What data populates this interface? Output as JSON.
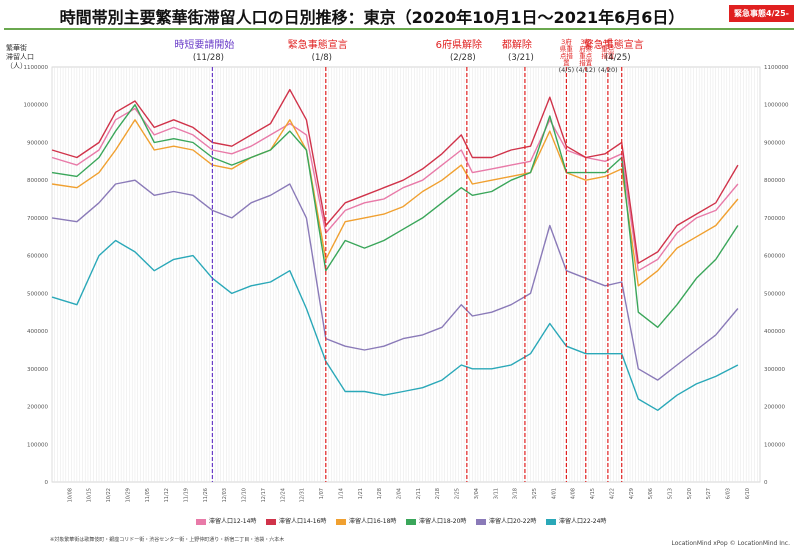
{
  "header": {
    "title": "時間帯別主要繁華街滞留人口の日別推移：東京（2020年10月1日〜2021年6月6日）",
    "badge": "緊急事態4/25-"
  },
  "footer": {
    "note": "※対象繁華街は歌舞伎町・銀座コリドー街・渋谷センター街・上野仲町通り・新宿二丁目・池袋・六本木",
    "credit": "LocationMind xPop © LocationMind Inc."
  },
  "chart_data": {
    "type": "line",
    "title": "時間帯別主要繁華街滞留人口の日別推移：東京（2020年10月1日〜2021年6月6日）",
    "ylabel": "繁華街滞留人口（人）",
    "ylim": [
      0,
      1100000
    ],
    "yticks": [
      0,
      100000,
      200000,
      300000,
      400000,
      500000,
      600000,
      700000,
      800000,
      900000,
      1000000,
      1100000
    ],
    "xlim": [
      "2020-10-01",
      "2021-06-14"
    ],
    "x_tick_labels": [
      "10/08",
      "10/15",
      "10/22",
      "10/29",
      "11/05",
      "11/12",
      "11/19",
      "11/26",
      "12/03",
      "12/10",
      "12/17",
      "12/24",
      "12/31",
      "1/07",
      "1/14",
      "1/21",
      "1/28",
      "2/04",
      "2/11",
      "2/18",
      "2/25",
      "3/04",
      "3/11",
      "3/18",
      "3/25",
      "4/01",
      "4/08",
      "4/15",
      "4/22",
      "4/29",
      "5/06",
      "5/13",
      "5/20",
      "5/27",
      "6/03",
      "6/10"
    ],
    "grid": "vertical daily",
    "annotations": [
      {
        "date": "2020-11-28",
        "label": "時短要請開始",
        "date_label": "(11/28)",
        "color": "#6a3dc8"
      },
      {
        "date": "2021-01-08",
        "label": "緊急事態宣言",
        "date_label": "(1/8)",
        "color": "#e02020"
      },
      {
        "date": "2021-02-28",
        "label": "6府県解除",
        "date_label": "(2/28)",
        "color": "#e02020"
      },
      {
        "date": "2021-03-21",
        "label": "都解除",
        "date_label": "(3/21)",
        "color": "#e02020"
      },
      {
        "date": "2021-04-05",
        "label": "3府県重点措置",
        "date_label": "(4/5)",
        "color": "#e02020"
      },
      {
        "date": "2021-04-12",
        "label": "3都府県重点措置",
        "date_label": "(4/12)",
        "color": "#e02020"
      },
      {
        "date": "2021-04-20",
        "label": "4県重点措置",
        "date_label": "(4/20)",
        "color": "#e02020"
      },
      {
        "date": "2021-04-25",
        "label": "緊急事態宣言",
        "date_label": "(4/25)",
        "color": "#e02020"
      }
    ],
    "series": [
      {
        "name": "滞留人口12-14時",
        "color": "#e87aa8",
        "points": [
          [
            "2020-10-01",
            860000
          ],
          [
            "2020-10-10",
            840000
          ],
          [
            "2020-10-18",
            880000
          ],
          [
            "2020-10-24",
            960000
          ],
          [
            "2020-10-31",
            990000
          ],
          [
            "2020-11-07",
            920000
          ],
          [
            "2020-11-14",
            940000
          ],
          [
            "2020-11-21",
            920000
          ],
          [
            "2020-11-28",
            880000
          ],
          [
            "2020-12-05",
            870000
          ],
          [
            "2020-12-12",
            890000
          ],
          [
            "2020-12-19",
            920000
          ],
          [
            "2020-12-26",
            950000
          ],
          [
            "2021-01-01",
            920000
          ],
          [
            "2021-01-08",
            660000
          ],
          [
            "2021-01-15",
            720000
          ],
          [
            "2021-01-22",
            740000
          ],
          [
            "2021-01-29",
            750000
          ],
          [
            "2021-02-05",
            780000
          ],
          [
            "2021-02-12",
            800000
          ],
          [
            "2021-02-19",
            840000
          ],
          [
            "2021-02-26",
            880000
          ],
          [
            "2021-03-02",
            820000
          ],
          [
            "2021-03-09",
            830000
          ],
          [
            "2021-03-16",
            840000
          ],
          [
            "2021-03-23",
            850000
          ],
          [
            "2021-03-30",
            960000
          ],
          [
            "2021-04-05",
            880000
          ],
          [
            "2021-04-12",
            860000
          ],
          [
            "2021-04-19",
            850000
          ],
          [
            "2021-04-25",
            870000
          ],
          [
            "2021-05-01",
            560000
          ],
          [
            "2021-05-08",
            590000
          ],
          [
            "2021-05-15",
            660000
          ],
          [
            "2021-05-22",
            700000
          ],
          [
            "2021-05-29",
            720000
          ],
          [
            "2021-06-06",
            790000
          ]
        ]
      },
      {
        "name": "滞留人口14-16時",
        "color": "#d0334a",
        "points": [
          [
            "2020-10-01",
            880000
          ],
          [
            "2020-10-10",
            860000
          ],
          [
            "2020-10-18",
            900000
          ],
          [
            "2020-10-24",
            980000
          ],
          [
            "2020-10-31",
            1010000
          ],
          [
            "2020-11-07",
            940000
          ],
          [
            "2020-11-14",
            960000
          ],
          [
            "2020-11-21",
            940000
          ],
          [
            "2020-11-28",
            900000
          ],
          [
            "2020-12-05",
            890000
          ],
          [
            "2020-12-12",
            920000
          ],
          [
            "2020-12-19",
            950000
          ],
          [
            "2020-12-26",
            1040000
          ],
          [
            "2021-01-01",
            960000
          ],
          [
            "2021-01-08",
            680000
          ],
          [
            "2021-01-15",
            740000
          ],
          [
            "2021-01-22",
            760000
          ],
          [
            "2021-01-29",
            780000
          ],
          [
            "2021-02-05",
            800000
          ],
          [
            "2021-02-12",
            830000
          ],
          [
            "2021-02-19",
            870000
          ],
          [
            "2021-02-26",
            920000
          ],
          [
            "2021-03-02",
            860000
          ],
          [
            "2021-03-09",
            860000
          ],
          [
            "2021-03-16",
            880000
          ],
          [
            "2021-03-23",
            890000
          ],
          [
            "2021-03-30",
            1020000
          ],
          [
            "2021-04-05",
            890000
          ],
          [
            "2021-04-12",
            860000
          ],
          [
            "2021-04-19",
            870000
          ],
          [
            "2021-04-25",
            900000
          ],
          [
            "2021-05-01",
            580000
          ],
          [
            "2021-05-08",
            610000
          ],
          [
            "2021-05-15",
            680000
          ],
          [
            "2021-05-22",
            710000
          ],
          [
            "2021-05-29",
            740000
          ],
          [
            "2021-06-06",
            840000
          ]
        ]
      },
      {
        "name": "滞留人口16-18時",
        "color": "#f0a030",
        "points": [
          [
            "2020-10-01",
            790000
          ],
          [
            "2020-10-10",
            780000
          ],
          [
            "2020-10-18",
            820000
          ],
          [
            "2020-10-24",
            880000
          ],
          [
            "2020-10-31",
            960000
          ],
          [
            "2020-11-07",
            880000
          ],
          [
            "2020-11-14",
            890000
          ],
          [
            "2020-11-21",
            880000
          ],
          [
            "2020-11-28",
            840000
          ],
          [
            "2020-12-05",
            830000
          ],
          [
            "2020-12-12",
            860000
          ],
          [
            "2020-12-19",
            880000
          ],
          [
            "2020-12-26",
            960000
          ],
          [
            "2021-01-01",
            880000
          ],
          [
            "2021-01-08",
            590000
          ],
          [
            "2021-01-15",
            690000
          ],
          [
            "2021-01-22",
            700000
          ],
          [
            "2021-01-29",
            710000
          ],
          [
            "2021-02-05",
            730000
          ],
          [
            "2021-02-12",
            770000
          ],
          [
            "2021-02-19",
            800000
          ],
          [
            "2021-02-26",
            840000
          ],
          [
            "2021-03-02",
            790000
          ],
          [
            "2021-03-09",
            800000
          ],
          [
            "2021-03-16",
            810000
          ],
          [
            "2021-03-23",
            820000
          ],
          [
            "2021-03-30",
            930000
          ],
          [
            "2021-04-05",
            820000
          ],
          [
            "2021-04-12",
            800000
          ],
          [
            "2021-04-19",
            810000
          ],
          [
            "2021-04-25",
            830000
          ],
          [
            "2021-05-01",
            520000
          ],
          [
            "2021-05-08",
            560000
          ],
          [
            "2021-05-15",
            620000
          ],
          [
            "2021-05-22",
            650000
          ],
          [
            "2021-05-29",
            680000
          ],
          [
            "2021-06-06",
            750000
          ]
        ]
      },
      {
        "name": "滞留人口18-20時",
        "color": "#3aa65a",
        "points": [
          [
            "2020-10-01",
            820000
          ],
          [
            "2020-10-10",
            810000
          ],
          [
            "2020-10-18",
            860000
          ],
          [
            "2020-10-24",
            930000
          ],
          [
            "2020-10-31",
            1000000
          ],
          [
            "2020-11-07",
            900000
          ],
          [
            "2020-11-14",
            910000
          ],
          [
            "2020-11-21",
            900000
          ],
          [
            "2020-11-28",
            860000
          ],
          [
            "2020-12-05",
            840000
          ],
          [
            "2020-12-12",
            860000
          ],
          [
            "2020-12-19",
            880000
          ],
          [
            "2020-12-26",
            930000
          ],
          [
            "2021-01-01",
            880000
          ],
          [
            "2021-01-08",
            560000
          ],
          [
            "2021-01-15",
            640000
          ],
          [
            "2021-01-22",
            620000
          ],
          [
            "2021-01-29",
            640000
          ],
          [
            "2021-02-05",
            670000
          ],
          [
            "2021-02-12",
            700000
          ],
          [
            "2021-02-19",
            740000
          ],
          [
            "2021-02-26",
            780000
          ],
          [
            "2021-03-02",
            760000
          ],
          [
            "2021-03-09",
            770000
          ],
          [
            "2021-03-16",
            800000
          ],
          [
            "2021-03-23",
            820000
          ],
          [
            "2021-03-30",
            970000
          ],
          [
            "2021-04-05",
            820000
          ],
          [
            "2021-04-12",
            820000
          ],
          [
            "2021-04-19",
            820000
          ],
          [
            "2021-04-25",
            860000
          ],
          [
            "2021-05-01",
            450000
          ],
          [
            "2021-05-08",
            410000
          ],
          [
            "2021-05-15",
            470000
          ],
          [
            "2021-05-22",
            540000
          ],
          [
            "2021-05-29",
            590000
          ],
          [
            "2021-06-06",
            680000
          ]
        ]
      },
      {
        "name": "滞留人口20-22時",
        "color": "#8a7ab8",
        "points": [
          [
            "2020-10-01",
            700000
          ],
          [
            "2020-10-10",
            690000
          ],
          [
            "2020-10-18",
            740000
          ],
          [
            "2020-10-24",
            790000
          ],
          [
            "2020-10-31",
            800000
          ],
          [
            "2020-11-07",
            760000
          ],
          [
            "2020-11-14",
            770000
          ],
          [
            "2020-11-21",
            760000
          ],
          [
            "2020-11-28",
            720000
          ],
          [
            "2020-12-05",
            700000
          ],
          [
            "2020-12-12",
            740000
          ],
          [
            "2020-12-19",
            760000
          ],
          [
            "2020-12-26",
            790000
          ],
          [
            "2021-01-01",
            700000
          ],
          [
            "2021-01-08",
            380000
          ],
          [
            "2021-01-15",
            360000
          ],
          [
            "2021-01-22",
            350000
          ],
          [
            "2021-01-29",
            360000
          ],
          [
            "2021-02-05",
            380000
          ],
          [
            "2021-02-12",
            390000
          ],
          [
            "2021-02-19",
            410000
          ],
          [
            "2021-02-26",
            470000
          ],
          [
            "2021-03-02",
            440000
          ],
          [
            "2021-03-09",
            450000
          ],
          [
            "2021-03-16",
            470000
          ],
          [
            "2021-03-23",
            500000
          ],
          [
            "2021-03-30",
            680000
          ],
          [
            "2021-04-05",
            560000
          ],
          [
            "2021-04-12",
            540000
          ],
          [
            "2021-04-19",
            520000
          ],
          [
            "2021-04-25",
            530000
          ],
          [
            "2021-05-01",
            300000
          ],
          [
            "2021-05-08",
            270000
          ],
          [
            "2021-05-15",
            310000
          ],
          [
            "2021-05-22",
            350000
          ],
          [
            "2021-05-29",
            390000
          ],
          [
            "2021-06-06",
            460000
          ]
        ]
      },
      {
        "name": "滞留人口22-24時",
        "color": "#2aa8b8",
        "points": [
          [
            "2020-10-01",
            490000
          ],
          [
            "2020-10-10",
            470000
          ],
          [
            "2020-10-18",
            600000
          ],
          [
            "2020-10-24",
            640000
          ],
          [
            "2020-10-31",
            610000
          ],
          [
            "2020-11-07",
            560000
          ],
          [
            "2020-11-14",
            590000
          ],
          [
            "2020-11-21",
            600000
          ],
          [
            "2020-11-28",
            540000
          ],
          [
            "2020-12-05",
            500000
          ],
          [
            "2020-12-12",
            520000
          ],
          [
            "2020-12-19",
            530000
          ],
          [
            "2020-12-26",
            560000
          ],
          [
            "2021-01-01",
            460000
          ],
          [
            "2021-01-08",
            320000
          ],
          [
            "2021-01-15",
            240000
          ],
          [
            "2021-01-22",
            240000
          ],
          [
            "2021-01-29",
            230000
          ],
          [
            "2021-02-05",
            240000
          ],
          [
            "2021-02-12",
            250000
          ],
          [
            "2021-02-19",
            270000
          ],
          [
            "2021-02-26",
            310000
          ],
          [
            "2021-03-02",
            300000
          ],
          [
            "2021-03-09",
            300000
          ],
          [
            "2021-03-16",
            310000
          ],
          [
            "2021-03-23",
            340000
          ],
          [
            "2021-03-30",
            420000
          ],
          [
            "2021-04-05",
            360000
          ],
          [
            "2021-04-12",
            340000
          ],
          [
            "2021-04-19",
            340000
          ],
          [
            "2021-04-25",
            340000
          ],
          [
            "2021-05-01",
            220000
          ],
          [
            "2021-05-08",
            190000
          ],
          [
            "2021-05-15",
            230000
          ],
          [
            "2021-05-22",
            260000
          ],
          [
            "2021-05-29",
            280000
          ],
          [
            "2021-06-06",
            310000
          ]
        ]
      }
    ]
  }
}
